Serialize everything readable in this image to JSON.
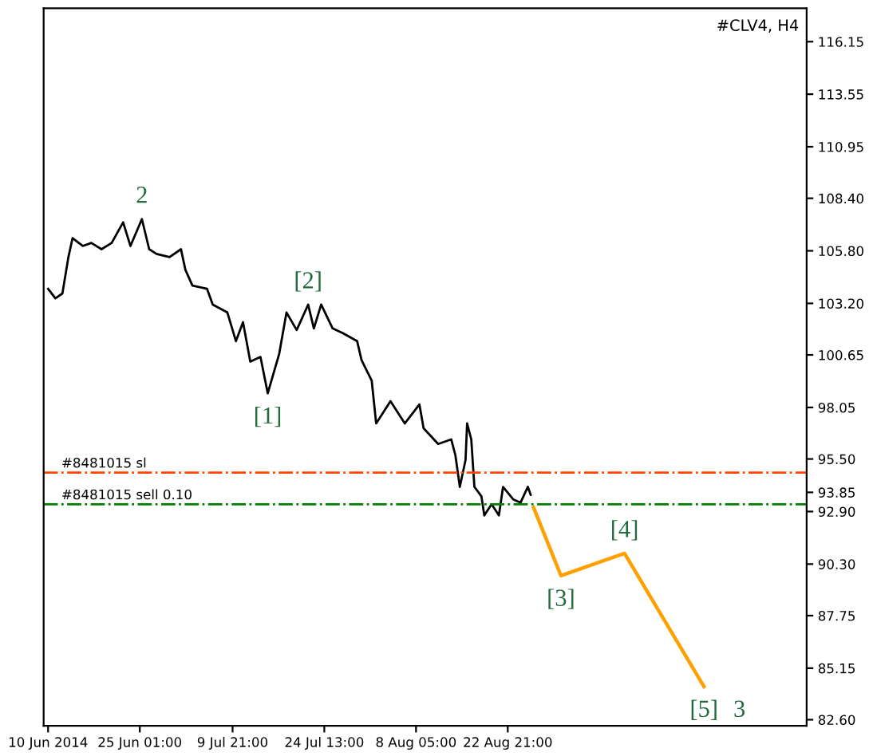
{
  "chart_data": {
    "type": "line",
    "title": "#CLV4, H4",
    "series": [
      {
        "color": "#000000",
        "x": [
          "2014-06-10T09:00",
          "2014-06-11T13:00",
          "2014-06-12T16:00",
          "2014-06-13T15:00",
          "2014-06-14T07:00",
          "2014-06-15T22:00",
          "2014-06-17T07:00",
          "2014-06-18T22:00",
          "2014-06-20T13:00",
          "2014-06-22T09:00",
          "2014-06-23T13:00",
          "2014-06-25T09:00",
          "2014-06-26T13:00",
          "2014-06-27T17:00",
          "2014-06-29T19:00",
          "2014-07-01T15:00",
          "2014-07-02T08:00",
          "2014-07-03T11:00",
          "2014-07-05T19:00",
          "2014-07-06T17:00",
          "2014-07-09T01:00",
          "2014-07-10T10:00",
          "2014-07-11T13:00",
          "2014-07-12T17:00",
          "2014-07-14T08:00",
          "2014-07-15T12:00",
          "2014-07-17T08:00",
          "2014-07-18T12:00",
          "2014-07-20T03:00",
          "2014-07-21T23:00",
          "2014-07-22T21:00",
          "2014-07-24T01:00",
          "2014-07-25T21:00",
          "2014-07-27T12:00",
          "2014-07-29T19:00",
          "2014-07-30T12:00",
          "2014-08-01T03:00",
          "2014-08-01T20:00",
          "2014-08-04T03:00",
          "2014-08-06T10:00",
          "2014-08-08T18:00",
          "2014-08-09T10:00",
          "2014-08-11T18:00",
          "2014-08-13T20:00",
          "2014-08-14T12:00",
          "2014-08-15T05:00",
          "2014-08-16T03:00",
          "2014-08-16T09:00",
          "2014-08-17T01:00",
          "2014-08-17T13:00",
          "2014-08-18T16:00",
          "2014-08-19T03:00",
          "2014-08-20T07:00",
          "2014-08-21T11:00",
          "2014-08-22T03:00",
          "2014-08-23T18:00",
          "2014-08-24T22:00",
          "2014-08-26T02:00",
          "2014-08-26T13:00"
        ],
        "values": [
          103.92,
          103.45,
          103.69,
          105.49,
          106.43,
          106.04,
          106.19,
          105.88,
          106.19,
          107.21,
          106.04,
          107.37,
          105.88,
          105.65,
          105.49,
          105.88,
          104.86,
          104.08,
          103.92,
          103.14,
          102.75,
          101.33,
          102.27,
          100.32,
          100.55,
          98.75,
          100.71,
          102.75,
          101.88,
          103.14,
          101.96,
          103.14,
          101.96,
          101.73,
          101.33,
          100.39,
          99.37,
          97.26,
          98.36,
          97.26,
          98.2,
          97.02,
          96.24,
          96.47,
          95.69,
          94.12,
          95.45,
          97.26,
          96.47,
          94.12,
          93.65,
          92.71,
          93.26,
          92.71,
          94.12,
          93.5,
          93.34,
          94.12,
          93.73
        ]
      },
      {
        "color": "#ffa000",
        "x": [
          "2014-08-27T00:00",
          "2014-08-31T09:00",
          "2014-09-10T13:00",
          "2014-09-23T06:00"
        ],
        "values": [
          93.1,
          89.73,
          90.83,
          84.24
        ]
      }
    ],
    "xlim": [
      "2014-06-09T16:00",
      "2014-10-09T16:00"
    ],
    "xticks": [
      {
        "value": "2014-06-10T09:00",
        "label": "10 Jun 2014"
      },
      {
        "value": "2014-06-25T01:00",
        "label": "25 Jun 01:00"
      },
      {
        "value": "2014-07-09T21:00",
        "label": "9 Jul 21:00"
      },
      {
        "value": "2014-07-24T13:00",
        "label": "24 Jul 13:00"
      },
      {
        "value": "2014-08-08T05:00",
        "label": "8 Aug 05:00"
      },
      {
        "value": "2014-08-22T21:00",
        "label": "22 Aug 21:00"
      }
    ],
    "ylim": [
      82.3,
      117.8
    ],
    "yticks": [
      {
        "value": 116.15,
        "label": "116.15"
      },
      {
        "value": 113.55,
        "label": "113.55"
      },
      {
        "value": 110.95,
        "label": "110.95"
      },
      {
        "value": 108.4,
        "label": "108.40"
      },
      {
        "value": 105.8,
        "label": "105.80"
      },
      {
        "value": 103.2,
        "label": "103.20"
      },
      {
        "value": 100.65,
        "label": "100.65"
      },
      {
        "value": 98.05,
        "label": "98.05"
      },
      {
        "value": 95.5,
        "label": "95.50"
      },
      {
        "value": 93.85,
        "label": "93.85"
      },
      {
        "value": 92.9,
        "label": "92.90"
      },
      {
        "value": 90.3,
        "label": "90.30"
      },
      {
        "value": 87.75,
        "label": "87.75"
      },
      {
        "value": 85.15,
        "label": "85.15"
      },
      {
        "value": 82.6,
        "label": "82.60"
      }
    ],
    "ref_lines": [
      {
        "axis": "y",
        "value": 94.83,
        "label": "#8481015 sl",
        "color": "#ff4500",
        "line_style": "dashdot"
      },
      {
        "axis": "y",
        "value": 93.26,
        "label": "#8481015 sell 0.10",
        "color": "#008000",
        "line_style": "dashdot"
      }
    ],
    "annotations": [
      {
        "text": "2",
        "x": "2014-06-25T09:00",
        "y": 107.37
      },
      {
        "text": "[1]",
        "x": "2014-07-15T12:00",
        "y": 98.75
      },
      {
        "text": "[2]",
        "x": "2014-07-21T23:00",
        "y": 103.14
      },
      {
        "text": "[3]",
        "x": "2014-08-31T09:00",
        "y": 89.73
      },
      {
        "text": "[4]",
        "x": "2014-09-10T13:00",
        "y": 90.83
      },
      {
        "text": "[5]",
        "x": "2014-09-23T06:00",
        "y": 84.24
      },
      {
        "text": "3",
        "x": "2014-09-23T06:00",
        "y": 84.24
      }
    ],
    "grid": false,
    "legend": false,
    "marker": "none",
    "line_style": "solid"
  }
}
